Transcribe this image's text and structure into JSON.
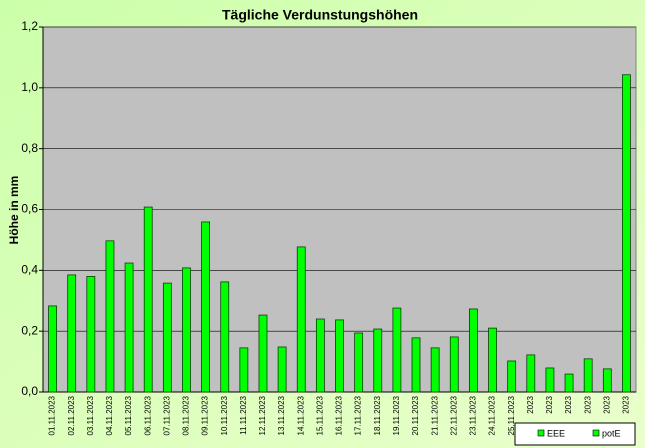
{
  "chart_data": {
    "type": "bar",
    "title": "Tägliche Verdunstungshöhen",
    "y_label": "Höhe in mm",
    "categories": [
      "01.11.2023",
      "02.11.2023",
      "03.11.2023",
      "04.11.2023",
      "05.11.2023",
      "06.11.2023",
      "07.11.2023",
      "08.11.2023",
      "09.11.2023",
      "10.11.2023",
      "11.11.2023",
      "12.11.2023",
      "13.11.2023",
      "14.11.2023",
      "15.11.2023",
      "16.11.2023",
      "17.11.2023",
      "18.11.2023",
      "19.11.2023",
      "20.11.2023",
      "21.11.2023",
      "22.11.2023",
      "23.11.2023",
      "24.11.2023",
      "25.11.2023",
      "2023",
      "2023",
      "2023",
      "2023",
      "2023",
      "2023"
    ],
    "series": [
      {
        "name": "EEE",
        "color": "#00ff00"
      },
      {
        "name": "potE",
        "color": "#00ff00",
        "values": [
          0.283,
          0.385,
          0.38,
          0.497,
          0.424,
          0.608,
          0.358,
          0.408,
          0.559,
          0.362,
          0.145,
          0.253,
          0.148,
          0.477,
          0.24,
          0.237,
          0.194,
          0.207,
          0.276,
          0.178,
          0.145,
          0.181,
          0.273,
          0.21,
          0.102,
          0.122,
          0.079,
          0.059,
          0.109,
          0.076,
          1.043
        ]
      }
    ],
    "ylim": [
      0,
      1.2
    ],
    "yticks": [
      {
        "value": 0,
        "label": "0,0"
      },
      {
        "value": 0.2,
        "label": "0,2"
      },
      {
        "value": 0.4,
        "label": "0,4"
      },
      {
        "value": 0.6,
        "label": "0,6"
      },
      {
        "value": 0.8,
        "label": "0,8"
      },
      {
        "value": 1.0,
        "label": "1,0"
      },
      {
        "value": 1.2,
        "label": "1,2"
      }
    ],
    "grid": true
  }
}
